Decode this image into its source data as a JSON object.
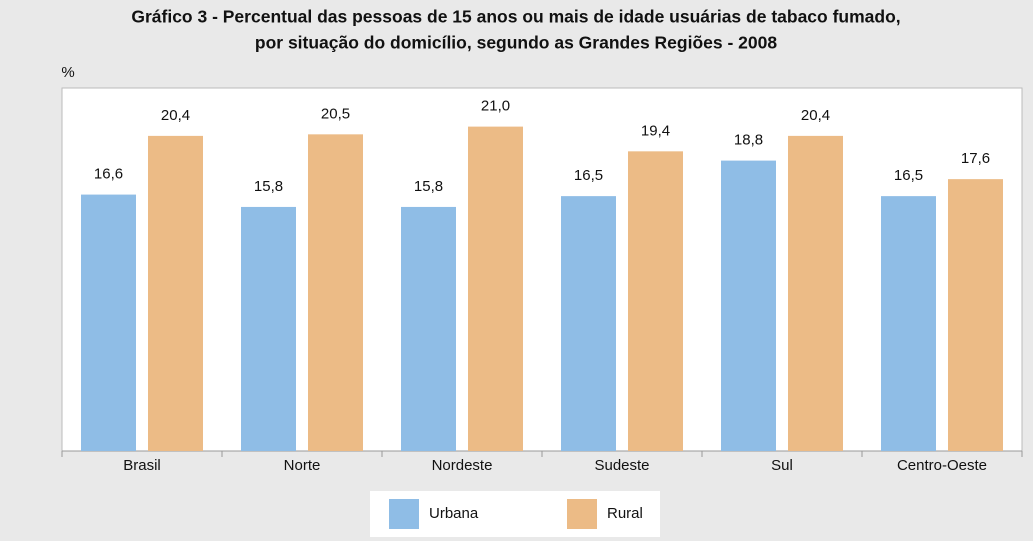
{
  "chart_data": {
    "type": "bar",
    "title": [
      "Gráfico 3 - Percentual das pessoas de 15 anos ou mais de idade usuárias de tabaco fumado,",
      "por situação do domicílio, segundo as Grandes Regiões - 2008"
    ],
    "y_label": "%",
    "categories": [
      "Brasil",
      "Norte",
      "Nordeste",
      "Sudeste",
      "Sul",
      "Centro-Oeste"
    ],
    "series": [
      {
        "name": "Urbana",
        "color": "#8fbde6",
        "values": [
          16.6,
          15.8,
          15.8,
          16.5,
          18.8,
          16.5
        ],
        "value_labels": [
          "16,6",
          "15,8",
          "15,8",
          "16,5",
          "18,8",
          "16,5"
        ]
      },
      {
        "name": "Rural",
        "color": "#ecbb86",
        "values": [
          20.4,
          20.5,
          21.0,
          19.4,
          20.4,
          17.6
        ],
        "value_labels": [
          "20,4",
          "20,5",
          "21,0",
          "19,4",
          "20,4",
          "17,6"
        ]
      }
    ],
    "ylim": [
      0,
      23.5
    ],
    "legend": "bottom"
  }
}
